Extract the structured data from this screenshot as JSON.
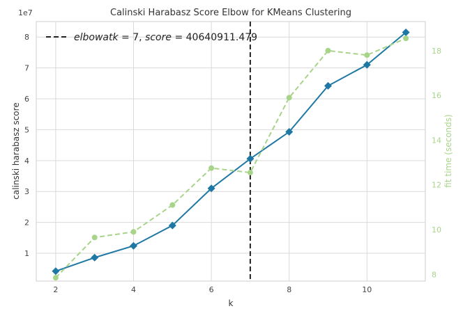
{
  "chart_data": {
    "type": "line",
    "title": "Calinski Harabasz Score Elbow for KMeans Clustering",
    "xlabel": "k",
    "ylabel": "calinski harabasz score",
    "y2label": "fit time (seconds)",
    "y_multiplier_label": "1e7",
    "x": [
      2,
      3,
      4,
      5,
      6,
      7,
      8,
      9,
      10,
      11
    ],
    "xlim": [
      1.5,
      11.5
    ],
    "ylim": [
      0.1,
      8.5
    ],
    "y2lim": [
      7.7,
      19.3
    ],
    "x_ticks": [
      2,
      4,
      6,
      8,
      10
    ],
    "y_ticks": [
      1,
      2,
      3,
      4,
      5,
      6,
      7,
      8
    ],
    "y2_ticks": [
      8,
      10,
      12,
      14,
      16,
      18
    ],
    "grid": true,
    "legend_position": "top-left",
    "series": [
      {
        "axis": "left",
        "values": [
          0.42,
          0.86,
          1.24,
          1.9,
          3.1,
          4.06,
          4.93,
          6.42,
          7.1,
          8.15
        ],
        "color": "#1f78a4",
        "marker": "diamond",
        "linestyle": "solid"
      },
      {
        "axis": "right",
        "values": [
          7.85,
          9.65,
          9.9,
          11.1,
          12.75,
          12.55,
          15.9,
          18.0,
          17.8,
          18.55
        ],
        "color": "#a8d48a",
        "marker": "circle",
        "linestyle": "dashed"
      }
    ],
    "elbow": {
      "x": 7,
      "legend_label": "elbow at k = 7, score = 40640911.479",
      "legend_k_text": "elbowatk",
      "legend_k_value": "7",
      "legend_score_text": "score",
      "legend_score_value": "40640911.479",
      "color": "#222222",
      "linestyle": "dashed"
    },
    "right_axis_color": "#a8d48a"
  }
}
